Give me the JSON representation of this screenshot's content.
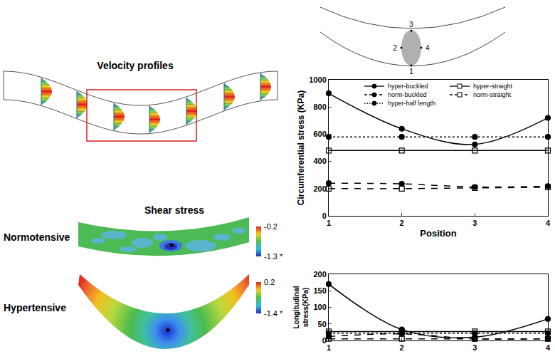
{
  "velocity_panel": {
    "title": "Velocity profiles"
  },
  "shear_panel": {
    "title": "Shear stress",
    "maps": [
      {
        "label": "Normotensive",
        "min_mark": "*",
        "colorbar": {
          "range": [
            -1.3,
            -0.2
          ],
          "ticks": [
            -0.2,
            {
              "value": -1.3,
              "label": "-1.3 *"
            }
          ]
        }
      },
      {
        "label": "Hypertensive",
        "min_mark": "*",
        "colorbar": {
          "range": [
            -1.4,
            0.2
          ],
          "ticks": [
            0.2,
            {
              "value": -1.4,
              "label": "-1.4 *"
            }
          ]
        }
      }
    ]
  },
  "position_diagram": {
    "labels": [
      "1",
      "2",
      "3",
      "4"
    ]
  },
  "chart_data": [
    {
      "type": "line",
      "xlabel": "Position",
      "ylabel": "Circumferential stress (KPa)",
      "x": [
        1,
        2,
        3,
        4
      ],
      "xlim": [
        1,
        4
      ],
      "xticks": [
        1,
        2,
        3,
        4
      ],
      "ylim": [
        0,
        1000
      ],
      "yticks": [
        0,
        200,
        400,
        600,
        800,
        1000
      ],
      "grid": false,
      "legend": "top",
      "series": [
        {
          "name": "hyper-buckled",
          "color": "#000000",
          "marker": "circle",
          "line_style": "solid",
          "values": [
            900,
            640,
            525,
            720
          ]
        },
        {
          "name": "hyper-straight",
          "color": "#000000",
          "marker": "square-open",
          "line_style": "solid",
          "values": [
            480,
            480,
            480,
            480
          ]
        },
        {
          "name": "norm-buckled",
          "color": "#000000",
          "marker": "circle",
          "line_style": "dashed",
          "values": [
            240,
            235,
            212,
            218
          ]
        },
        {
          "name": "norm-straight",
          "color": "#000000",
          "marker": "square-open",
          "line_style": "dashed",
          "values": [
            200,
            200,
            205,
            210
          ]
        },
        {
          "name": "hyper-half length",
          "color": "#000000",
          "marker": "circle",
          "line_style": "dotted",
          "values": [
            580,
            580,
            580,
            580
          ]
        }
      ]
    },
    {
      "type": "line",
      "ylabel": "Longitudinal stress(KPa)",
      "x": [
        1,
        2,
        3,
        4
      ],
      "xlim": [
        1,
        4
      ],
      "xticks": [
        1,
        2,
        3,
        4
      ],
      "ylim": [
        0,
        200
      ],
      "yticks": [
        0,
        50,
        100,
        150,
        200
      ],
      "grid": false,
      "series": [
        {
          "name": "hyper-buckled",
          "color": "#000000",
          "marker": "circle",
          "line_style": "solid",
          "values": [
            170,
            33,
            10,
            65
          ]
        },
        {
          "name": "hyper-straight",
          "color": "#000000",
          "marker": "square-open",
          "line_style": "solid",
          "values": [
            27,
            27,
            27,
            27
          ]
        },
        {
          "name": "norm-buckled",
          "color": "#000000",
          "marker": "circle",
          "line_style": "dashed",
          "values": [
            12,
            20,
            5,
            5
          ]
        },
        {
          "name": "norm-straight",
          "color": "#000000",
          "marker": "square-open",
          "line_style": "dashed",
          "values": [
            5,
            5,
            5,
            5
          ]
        },
        {
          "name": "hyper-half length",
          "color": "#000000",
          "marker": "circle",
          "line_style": "dotted",
          "values": [
            22,
            22,
            22,
            22
          ]
        }
      ]
    }
  ]
}
